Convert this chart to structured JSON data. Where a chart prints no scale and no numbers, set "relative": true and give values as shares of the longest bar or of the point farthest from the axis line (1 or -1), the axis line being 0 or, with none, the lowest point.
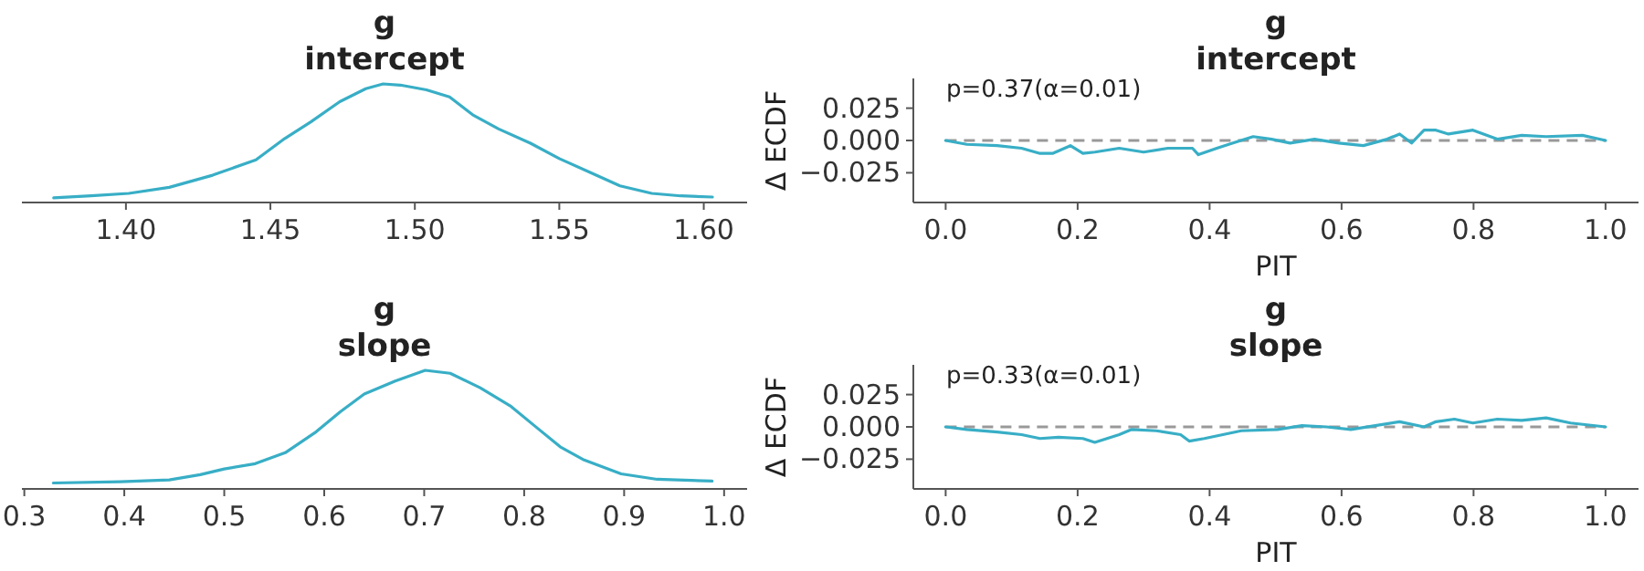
{
  "chart_data": [
    {
      "type": "line",
      "title": "g\nintercept",
      "relative": true,
      "xlim": [
        1.364,
        1.615
      ],
      "xticks": [
        {
          "value": 1.4,
          "label": "1.40"
        },
        {
          "value": 1.45,
          "label": "1.45"
        },
        {
          "value": 1.5,
          "label": "1.50"
        },
        {
          "value": 1.55,
          "label": "1.55"
        },
        {
          "value": 1.6,
          "label": "1.60"
        }
      ],
      "series": [
        {
          "color": "#38aec6",
          "x": [
            1.375,
            1.388,
            1.401,
            1.415,
            1.43,
            1.445,
            1.455,
            1.464,
            1.474,
            1.483,
            1.489,
            1.495,
            1.504,
            1.512,
            1.52,
            1.529,
            1.54,
            1.55,
            1.561,
            1.571,
            1.582,
            1.592,
            1.603
          ],
          "values": [
            0.04,
            0.056,
            0.077,
            0.128,
            0.23,
            0.36,
            0.54,
            0.68,
            0.85,
            0.96,
            1,
            0.99,
            0.95,
            0.89,
            0.74,
            0.62,
            0.5,
            0.37,
            0.25,
            0.14,
            0.077,
            0.056,
            0.046
          ]
        }
      ]
    },
    {
      "type": "line",
      "title": "g\nintercept",
      "xlabel": "PIT",
      "ylabel": "Δ ECDF",
      "xlim": [
        -0.049,
        1.05
      ],
      "ylim": [
        -0.048,
        0.048
      ],
      "xticks": [
        {
          "value": 0,
          "label": "0.0"
        },
        {
          "value": 0.2,
          "label": "0.2"
        },
        {
          "value": 0.4,
          "label": "0.4"
        },
        {
          "value": 0.6,
          "label": "0.6"
        },
        {
          "value": 0.8,
          "label": "0.8"
        },
        {
          "value": 1,
          "label": "1.0"
        }
      ],
      "yticks": [
        {
          "value": -0.025,
          "label": "−0.025"
        },
        {
          "value": 0,
          "label": "0.000"
        },
        {
          "value": 0.025,
          "label": "0.025"
        }
      ],
      "ref_lines": [
        {
          "axis": "y",
          "value": 0,
          "label": null,
          "color": "#999999",
          "line_style": "dashed"
        }
      ],
      "annotations": [
        "p=0.37(α=0.01)"
      ],
      "series": [
        {
          "color": "#38aec6",
          "x": [
            0,
            0.032,
            0.078,
            0.115,
            0.143,
            0.162,
            0.189,
            0.208,
            0.226,
            0.263,
            0.3,
            0.337,
            0.374,
            0.383,
            0.411,
            0.429,
            0.466,
            0.494,
            0.522,
            0.559,
            0.596,
            0.633,
            0.669,
            0.688,
            0.706,
            0.725,
            0.743,
            0.762,
            0.799,
            0.836,
            0.873,
            0.91,
            0.965,
            1
          ],
          "values": [
            0,
            -0.003,
            -0.004,
            -0.006,
            -0.01,
            -0.01,
            -0.004,
            -0.01,
            -0.009,
            -0.006,
            -0.009,
            -0.006,
            -0.006,
            -0.011,
            -0.006,
            -0.003,
            0.003,
            0.001,
            -0.002,
            0.001,
            -0.002,
            -0.004,
            0.001,
            0.005,
            -0.002,
            0.008,
            0.008,
            0.005,
            0.008,
            0.001,
            0.004,
            0.003,
            0.004,
            0
          ]
        }
      ]
    },
    {
      "type": "line",
      "title": "g\nslope",
      "relative": true,
      "xlim": [
        0.2976,
        1.023
      ],
      "xticks": [
        {
          "value": 0.3,
          "label": "0.3"
        },
        {
          "value": 0.4,
          "label": "0.4"
        },
        {
          "value": 0.5,
          "label": "0.5"
        },
        {
          "value": 0.6,
          "label": "0.6"
        },
        {
          "value": 0.7,
          "label": "0.7"
        },
        {
          "value": 0.8,
          "label": "0.8"
        },
        {
          "value": 0.9,
          "label": "0.9"
        },
        {
          "value": 1,
          "label": "1.0"
        }
      ],
      "series": [
        {
          "color": "#38aec6",
          "x": [
            0.329,
            0.396,
            0.445,
            0.476,
            0.5,
            0.531,
            0.561,
            0.592,
            0.616,
            0.64,
            0.671,
            0.701,
            0.726,
            0.756,
            0.787,
            0.811,
            0.836,
            0.86,
            0.897,
            0.933,
            0.988
          ],
          "values": [
            0.05,
            0.061,
            0.076,
            0.12,
            0.168,
            0.213,
            0.305,
            0.482,
            0.65,
            0.8,
            0.91,
            1,
            0.975,
            0.853,
            0.695,
            0.528,
            0.355,
            0.244,
            0.127,
            0.081,
            0.066
          ]
        }
      ]
    },
    {
      "type": "line",
      "title": "g\nslope",
      "xlabel": "PIT",
      "ylabel": "Δ ECDF",
      "xlim": [
        -0.049,
        1.05
      ],
      "ylim": [
        -0.048,
        0.048
      ],
      "xticks": [
        {
          "value": 0,
          "label": "0.0"
        },
        {
          "value": 0.2,
          "label": "0.2"
        },
        {
          "value": 0.4,
          "label": "0.4"
        },
        {
          "value": 0.6,
          "label": "0.6"
        },
        {
          "value": 0.8,
          "label": "0.8"
        },
        {
          "value": 1,
          "label": "1.0"
        }
      ],
      "yticks": [
        {
          "value": -0.025,
          "label": "−0.025"
        },
        {
          "value": 0,
          "label": "0.000"
        },
        {
          "value": 0.025,
          "label": "0.025"
        }
      ],
      "ref_lines": [
        {
          "axis": "y",
          "value": 0,
          "label": null,
          "color": "#999999",
          "line_style": "dashed"
        }
      ],
      "annotations": [
        "p=0.33(α=0.01)"
      ],
      "series": [
        {
          "color": "#38aec6",
          "x": [
            0,
            0.032,
            0.078,
            0.115,
            0.143,
            0.171,
            0.208,
            0.226,
            0.263,
            0.282,
            0.319,
            0.356,
            0.369,
            0.392,
            0.42,
            0.448,
            0.503,
            0.54,
            0.577,
            0.614,
            0.651,
            0.688,
            0.725,
            0.743,
            0.771,
            0.799,
            0.836,
            0.873,
            0.91,
            0.947,
            1
          ],
          "values": [
            0,
            -0.002,
            -0.004,
            -0.006,
            -0.009,
            -0.008,
            -0.009,
            -0.012,
            -0.006,
            -0.002,
            -0.003,
            -0.006,
            -0.011,
            -0.009,
            -0.006,
            -0.003,
            -0.002,
            0.001,
            0,
            -0.002,
            0.001,
            0.004,
            0,
            0.004,
            0.006,
            0.003,
            0.006,
            0.005,
            0.007,
            0.003,
            0
          ]
        }
      ]
    }
  ]
}
